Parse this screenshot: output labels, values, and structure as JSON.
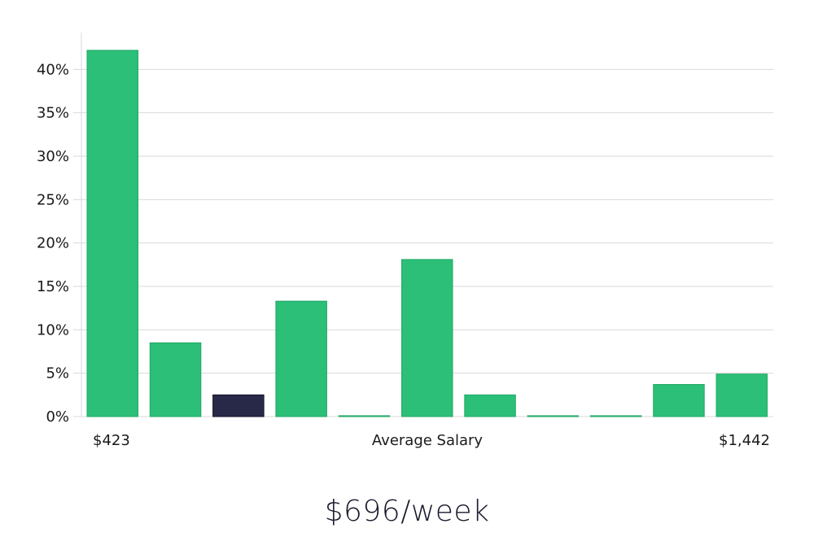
{
  "headline": "$696/week",
  "chart_data": {
    "type": "bar",
    "xlabel": "Average Salary",
    "x_min_label": "$423",
    "x_max_label": "$1,442",
    "ylim": [
      0,
      45
    ],
    "yticks": [
      0,
      5,
      10,
      15,
      20,
      25,
      30,
      35,
      40
    ],
    "ytick_suffix": "%",
    "grid": true,
    "values": [
      42.2,
      8.5,
      2.5,
      13.3,
      0.1,
      18.1,
      2.5,
      0.1,
      0.1,
      3.7,
      4.9
    ],
    "highlight_index": 2,
    "colors": {
      "bar": "#2bbf78",
      "bar_stroke": "#22a866",
      "highlight": "#282848",
      "highlight_stroke": "#12122a"
    }
  }
}
